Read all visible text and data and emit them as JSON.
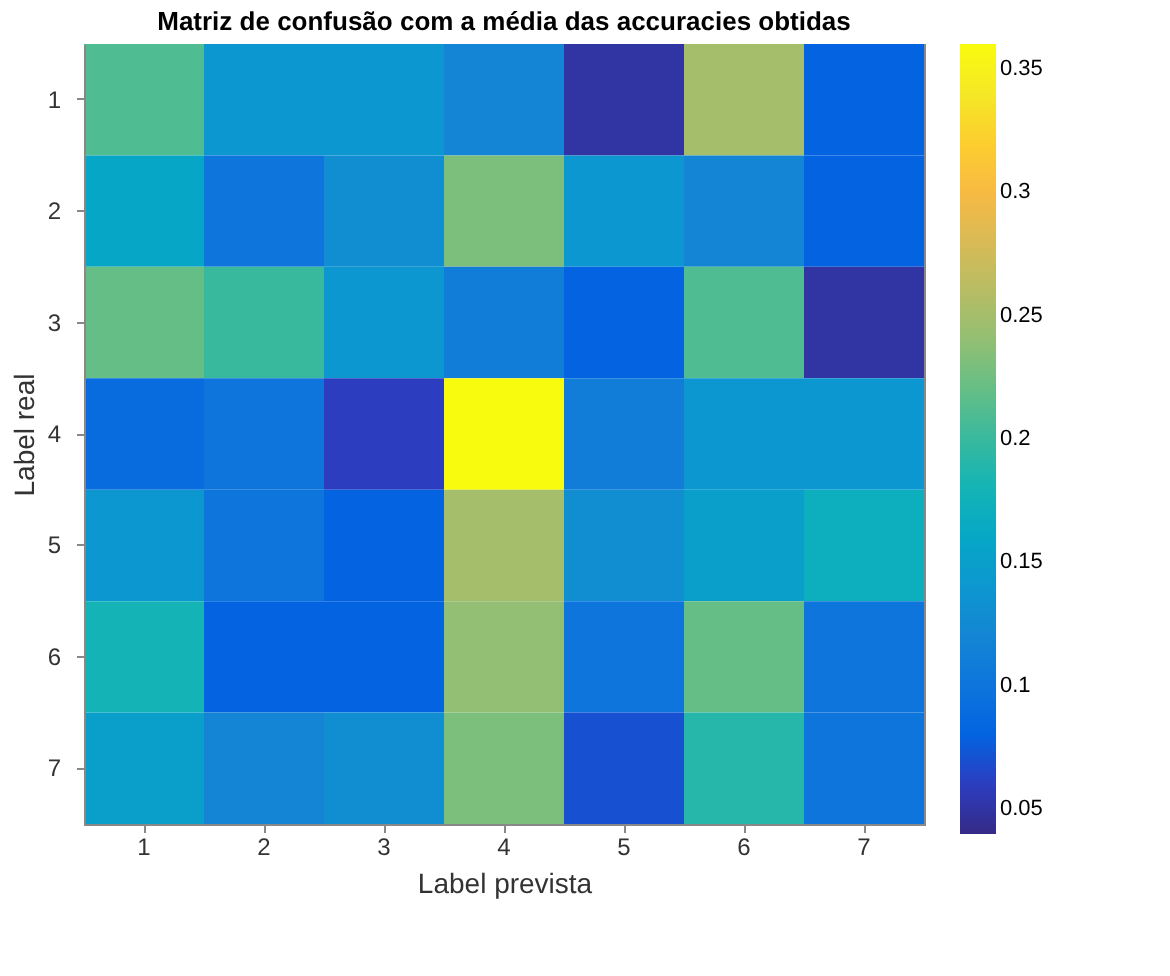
{
  "chart_data": {
    "type": "heatmap",
    "title": "Matriz de confusão com a média das accuracies obtidas",
    "xlabel": "Label prevista",
    "ylabel": "Label real",
    "categories": [
      "1",
      "2",
      "3",
      "4",
      "5",
      "6",
      "7"
    ],
    "y_categories": [
      "1",
      "2",
      "3",
      "4",
      "5",
      "6",
      "7"
    ],
    "cells": [
      [
        0.21,
        0.14,
        0.14,
        0.12,
        0.05,
        0.25,
        0.08
      ],
      [
        0.16,
        0.1,
        0.13,
        0.23,
        0.14,
        0.12,
        0.08
      ],
      [
        0.22,
        0.2,
        0.14,
        0.11,
        0.08,
        0.21,
        0.05
      ],
      [
        0.09,
        0.1,
        0.06,
        0.36,
        0.11,
        0.14,
        0.14
      ],
      [
        0.14,
        0.1,
        0.08,
        0.25,
        0.13,
        0.15,
        0.17
      ],
      [
        0.18,
        0.08,
        0.08,
        0.24,
        0.1,
        0.22,
        0.1
      ],
      [
        0.15,
        0.12,
        0.13,
        0.23,
        0.07,
        0.19,
        0.1
      ]
    ],
    "clim": [
      0.04,
      0.36
    ],
    "cticks": [
      0.05,
      0.1,
      0.15,
      0.2,
      0.25,
      0.3,
      0.35
    ],
    "grid": false
  }
}
